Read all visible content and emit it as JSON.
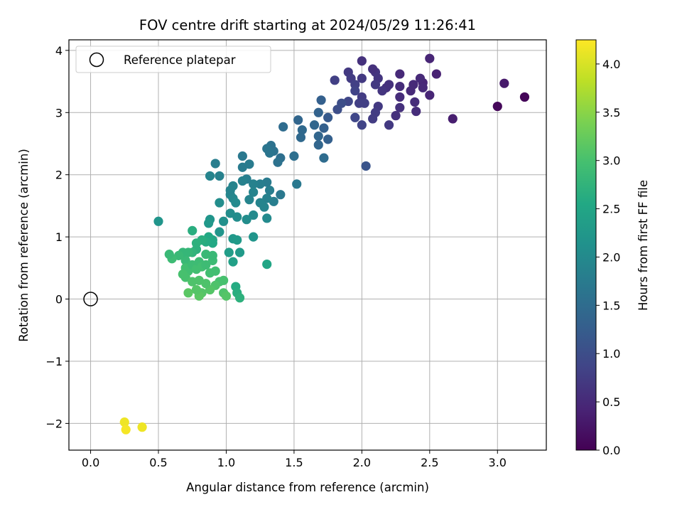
{
  "chart_data": {
    "type": "scatter",
    "title": "FOV centre drift starting at 2024/05/29 11:26:41",
    "xlabel": "Angular distance from reference (arcmin)",
    "ylabel": "Rotation from reference (arcmin)",
    "xlim": [
      -0.16,
      3.36
    ],
    "ylim": [
      -2.43,
      4.17
    ],
    "xticks": [
      0.0,
      0.5,
      1.0,
      1.5,
      2.0,
      2.5,
      3.0
    ],
    "xtick_labels": [
      "0.0",
      "0.5",
      "1.0",
      "1.5",
      "2.0",
      "2.5",
      "3.0"
    ],
    "yticks": [
      -2,
      -1,
      0,
      1,
      2,
      3,
      4
    ],
    "ytick_labels": [
      "−2",
      "−1",
      "0",
      "1",
      "2",
      "3",
      "4"
    ],
    "grid": true,
    "legend": {
      "placement": "top-left",
      "entries": [
        "Reference platepar"
      ]
    },
    "reference_point": {
      "x": 0.0,
      "y": 0.0
    },
    "colorbar": {
      "label": "Hours from first FF file",
      "colormap": "viridis",
      "range": [
        0.0,
        4.25
      ],
      "ticks": [
        0.0,
        0.5,
        1.0,
        1.5,
        2.0,
        2.5,
        3.0,
        3.5,
        4.0
      ],
      "tick_labels": [
        "0.0",
        "0.5",
        "1.0",
        "1.5",
        "2.0",
        "2.5",
        "3.0",
        "3.5",
        "4.0"
      ]
    },
    "points": [
      [
        3.2,
        3.25,
        0.05
      ],
      [
        3.0,
        3.1,
        0.08
      ],
      [
        3.05,
        3.47,
        0.3
      ],
      [
        2.67,
        2.9,
        0.35
      ],
      [
        2.5,
        3.87,
        0.45
      ],
      [
        2.55,
        3.62,
        0.4
      ],
      [
        2.45,
        3.48,
        0.45
      ],
      [
        2.43,
        3.55,
        0.5
      ],
      [
        2.45,
        3.4,
        0.5
      ],
      [
        2.5,
        3.28,
        0.45
      ],
      [
        2.38,
        3.45,
        0.5
      ],
      [
        2.36,
        3.35,
        0.5
      ],
      [
        2.39,
        3.17,
        0.55
      ],
      [
        2.4,
        3.02,
        0.55
      ],
      [
        2.28,
        3.62,
        0.5
      ],
      [
        2.28,
        3.42,
        0.55
      ],
      [
        2.28,
        3.25,
        0.55
      ],
      [
        2.28,
        3.08,
        0.6
      ],
      [
        2.25,
        2.95,
        0.6
      ],
      [
        2.2,
        3.45,
        0.6
      ],
      [
        2.18,
        3.4,
        0.6
      ],
      [
        2.15,
        3.35,
        0.65
      ],
      [
        2.2,
        2.8,
        0.7
      ],
      [
        2.12,
        3.55,
        0.65
      ],
      [
        2.1,
        3.65,
        0.65
      ],
      [
        2.08,
        3.7,
        0.6
      ],
      [
        2.1,
        3.45,
        0.7
      ],
      [
        2.12,
        3.1,
        0.7
      ],
      [
        2.1,
        3.0,
        0.75
      ],
      [
        2.08,
        2.9,
        0.75
      ],
      [
        2.0,
        3.83,
        0.6
      ],
      [
        2.0,
        3.55,
        0.7
      ],
      [
        2.0,
        3.25,
        0.75
      ],
      [
        1.98,
        3.15,
        0.8
      ],
      [
        2.02,
        3.15,
        0.8
      ],
      [
        2.0,
        2.8,
        0.85
      ],
      [
        2.03,
        2.14,
        1.1
      ],
      [
        1.9,
        3.65,
        0.7
      ],
      [
        1.92,
        3.55,
        0.75
      ],
      [
        1.95,
        3.45,
        0.8
      ],
      [
        1.95,
        3.35,
        0.85
      ],
      [
        1.9,
        3.18,
        0.9
      ],
      [
        1.95,
        2.92,
        0.9
      ],
      [
        1.85,
        3.15,
        1.0
      ],
      [
        1.82,
        3.05,
        1.0
      ],
      [
        1.8,
        3.52,
        0.8
      ],
      [
        1.75,
        2.92,
        1.2
      ],
      [
        1.75,
        2.57,
        1.3
      ],
      [
        1.72,
        2.75,
        1.3
      ],
      [
        1.7,
        3.2,
        1.3
      ],
      [
        1.68,
        3.0,
        1.35
      ],
      [
        1.68,
        2.62,
        1.4
      ],
      [
        1.68,
        2.48,
        1.4
      ],
      [
        1.65,
        2.8,
        1.4
      ],
      [
        1.72,
        2.27,
        1.5
      ],
      [
        1.56,
        2.72,
        1.45
      ],
      [
        1.53,
        2.88,
        1.4
      ],
      [
        1.55,
        2.6,
        1.45
      ],
      [
        1.5,
        2.3,
        1.55
      ],
      [
        1.52,
        1.85,
        1.7
      ],
      [
        1.42,
        2.77,
        1.5
      ],
      [
        1.4,
        2.27,
        1.55
      ],
      [
        1.4,
        1.68,
        1.7
      ],
      [
        1.38,
        2.2,
        1.6
      ],
      [
        1.35,
        2.38,
        1.6
      ],
      [
        1.33,
        2.47,
        1.6
      ],
      [
        1.3,
        2.42,
        1.65
      ],
      [
        1.32,
        2.35,
        1.65
      ],
      [
        1.35,
        1.57,
        1.8
      ],
      [
        1.32,
        1.75,
        1.8
      ],
      [
        1.3,
        1.88,
        1.75
      ],
      [
        1.3,
        1.62,
        1.85
      ],
      [
        1.28,
        1.48,
        1.9
      ],
      [
        1.3,
        1.3,
        2.0
      ],
      [
        1.3,
        0.56,
        2.5
      ],
      [
        1.25,
        1.85,
        1.8
      ],
      [
        1.25,
        1.55,
        1.9
      ],
      [
        1.2,
        1.85,
        1.85
      ],
      [
        1.2,
        1.72,
        1.9
      ],
      [
        1.17,
        1.6,
        1.9
      ],
      [
        1.2,
        1.35,
        2.0
      ],
      [
        1.15,
        1.28,
        2.05
      ],
      [
        1.2,
        1.0,
        2.2
      ],
      [
        1.12,
        2.3,
        1.7
      ],
      [
        1.12,
        2.12,
        1.75
      ],
      [
        1.15,
        1.93,
        1.8
      ],
      [
        1.12,
        1.9,
        1.85
      ],
      [
        1.17,
        2.17,
        1.75
      ],
      [
        1.08,
        1.32,
        2.05
      ],
      [
        1.1,
        0.75,
        2.3
      ],
      [
        1.05,
        1.82,
        1.9
      ],
      [
        1.05,
        1.62,
        1.95
      ],
      [
        1.03,
        1.68,
        1.95
      ],
      [
        1.03,
        1.75,
        1.9
      ],
      [
        1.07,
        1.55,
        2.0
      ],
      [
        1.03,
        1.38,
        2.05
      ],
      [
        1.05,
        0.97,
        2.25
      ],
      [
        1.08,
        0.95,
        2.3
      ],
      [
        1.02,
        0.75,
        2.35
      ],
      [
        1.05,
        0.6,
        2.4
      ],
      [
        1.07,
        0.2,
        2.6
      ],
      [
        1.08,
        0.1,
        2.65
      ],
      [
        1.1,
        0.02,
        2.7
      ],
      [
        0.98,
        1.25,
        2.1
      ],
      [
        0.95,
        1.55,
        2.05
      ],
      [
        0.95,
        1.08,
        2.2
      ],
      [
        0.95,
        1.98,
        1.85
      ],
      [
        0.92,
        2.18,
        1.8
      ],
      [
        0.88,
        1.98,
        1.9
      ],
      [
        0.88,
        1.28,
        2.2
      ],
      [
        0.87,
        1.22,
        2.25
      ],
      [
        0.5,
        1.25,
        2.2
      ],
      [
        0.9,
        0.95,
        2.5
      ],
      [
        0.9,
        0.9,
        2.55
      ],
      [
        0.87,
        1.0,
        2.55
      ],
      [
        0.85,
        0.92,
        2.6
      ],
      [
        0.82,
        0.95,
        2.65
      ],
      [
        0.78,
        0.8,
        2.7
      ],
      [
        0.78,
        0.9,
        2.7
      ],
      [
        0.75,
        0.75,
        2.75
      ],
      [
        0.75,
        1.1,
        2.65
      ],
      [
        0.72,
        0.75,
        2.8
      ],
      [
        0.7,
        0.62,
        2.85
      ],
      [
        0.68,
        0.75,
        2.8
      ],
      [
        0.65,
        0.7,
        2.85
      ],
      [
        0.6,
        0.65,
        2.9
      ],
      [
        0.58,
        0.72,
        2.85
      ],
      [
        0.72,
        0.45,
        2.95
      ],
      [
        0.7,
        0.5,
        2.95
      ],
      [
        0.7,
        0.35,
        3.0
      ],
      [
        0.68,
        0.4,
        3.0
      ],
      [
        0.75,
        0.55,
        2.9
      ],
      [
        0.78,
        0.48,
        2.95
      ],
      [
        0.8,
        0.6,
        2.9
      ],
      [
        0.82,
        0.52,
        2.95
      ],
      [
        0.85,
        0.55,
        2.9
      ],
      [
        0.85,
        0.72,
        2.85
      ],
      [
        0.88,
        0.42,
        2.95
      ],
      [
        0.9,
        0.62,
        2.9
      ],
      [
        0.9,
        0.7,
        2.85
      ],
      [
        0.92,
        0.45,
        2.95
      ],
      [
        0.95,
        0.28,
        3.0
      ],
      [
        0.98,
        0.3,
        3.0
      ],
      [
        0.98,
        0.1,
        3.05
      ],
      [
        1.0,
        0.05,
        3.1
      ],
      [
        0.92,
        0.22,
        3.05
      ],
      [
        0.88,
        0.15,
        3.1
      ],
      [
        0.85,
        0.25,
        3.05
      ],
      [
        0.82,
        0.1,
        3.1
      ],
      [
        0.8,
        0.05,
        3.15
      ],
      [
        0.78,
        0.15,
        3.1
      ],
      [
        0.75,
        0.28,
        3.05
      ],
      [
        0.72,
        0.1,
        3.15
      ],
      [
        0.8,
        0.3,
        3.05
      ],
      [
        0.25,
        -1.98,
        4.15
      ],
      [
        0.26,
        -2.1,
        4.2
      ],
      [
        0.38,
        -2.06,
        4.15
      ]
    ]
  }
}
